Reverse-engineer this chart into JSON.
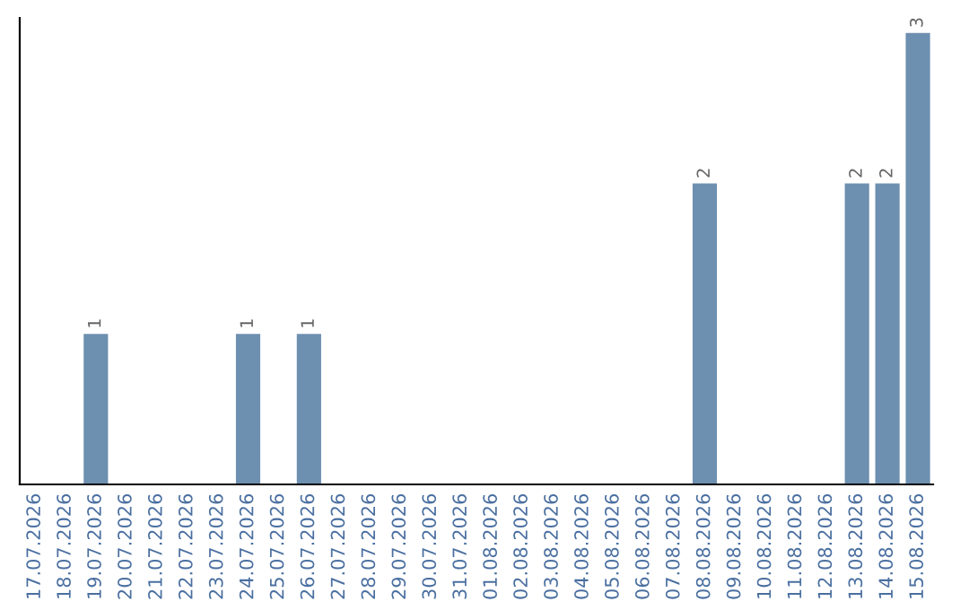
{
  "chart_data": {
    "type": "bar",
    "categories": [
      "17.07.2026",
      "18.07.2026",
      "19.07.2026",
      "20.07.2026",
      "21.07.2026",
      "22.07.2026",
      "23.07.2026",
      "24.07.2026",
      "25.07.2026",
      "26.07.2026",
      "27.07.2026",
      "28.07.2026",
      "29.07.2026",
      "30.07.2026",
      "31.07.2026",
      "01.08.2026",
      "02.08.2026",
      "03.08.2026",
      "04.08.2026",
      "05.08.2026",
      "06.08.2026",
      "07.08.2026",
      "08.08.2026",
      "09.08.2026",
      "10.08.2026",
      "11.08.2026",
      "12.08.2026",
      "13.08.2026",
      "14.08.2026",
      "15.08.2026"
    ],
    "values": [
      0,
      0,
      1,
      0,
      0,
      0,
      0,
      1,
      0,
      1,
      0,
      0,
      0,
      0,
      0,
      0,
      0,
      0,
      0,
      0,
      0,
      0,
      2,
      0,
      0,
      0,
      0,
      2,
      2,
      3
    ],
    "value_labels": [
      null,
      null,
      "1",
      null,
      null,
      null,
      null,
      "1",
      null,
      "1",
      null,
      null,
      null,
      null,
      null,
      null,
      null,
      null,
      null,
      null,
      null,
      null,
      "2",
      null,
      null,
      null,
      null,
      "2",
      "2",
      "3"
    ],
    "color": "#6d8fb0",
    "ylim": [
      0,
      3.1
    ],
    "tick_labels": "x",
    "grid": false,
    "legend": false
  }
}
